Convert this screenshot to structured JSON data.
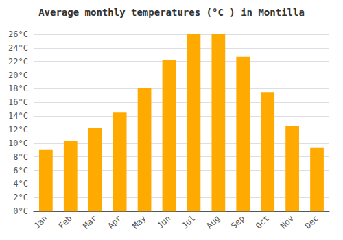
{
  "chart_data": {
    "type": "bar",
    "title": "Average monthly temperatures (°C ) in Montilla",
    "categories": [
      "Jan",
      "Feb",
      "Mar",
      "Apr",
      "May",
      "Jun",
      "Jul",
      "Aug",
      "Sep",
      "Oct",
      "Nov",
      "Dec"
    ],
    "values": [
      9.0,
      10.3,
      12.2,
      14.5,
      18.1,
      22.2,
      26.1,
      26.1,
      22.7,
      17.5,
      12.5,
      9.3
    ],
    "color": "#FFAA00",
    "ylim": [
      0,
      27
    ],
    "yticks": [
      {
        "value": 0,
        "label": "0°C"
      },
      {
        "value": 2,
        "label": "2°C"
      },
      {
        "value": 4,
        "label": "4°C"
      },
      {
        "value": 6,
        "label": "6°C"
      },
      {
        "value": 8,
        "label": "8°C"
      },
      {
        "value": 10,
        "label": "10°C"
      },
      {
        "value": 12,
        "label": "12°C"
      },
      {
        "value": 14,
        "label": "14°C"
      },
      {
        "value": 16,
        "label": "16°C"
      },
      {
        "value": 18,
        "label": "18°C"
      },
      {
        "value": 20,
        "label": "20°C"
      },
      {
        "value": 22,
        "label": "22°C"
      },
      {
        "value": 24,
        "label": "24°C"
      },
      {
        "value": 26,
        "label": "26°C"
      }
    ],
    "grid": true
  }
}
